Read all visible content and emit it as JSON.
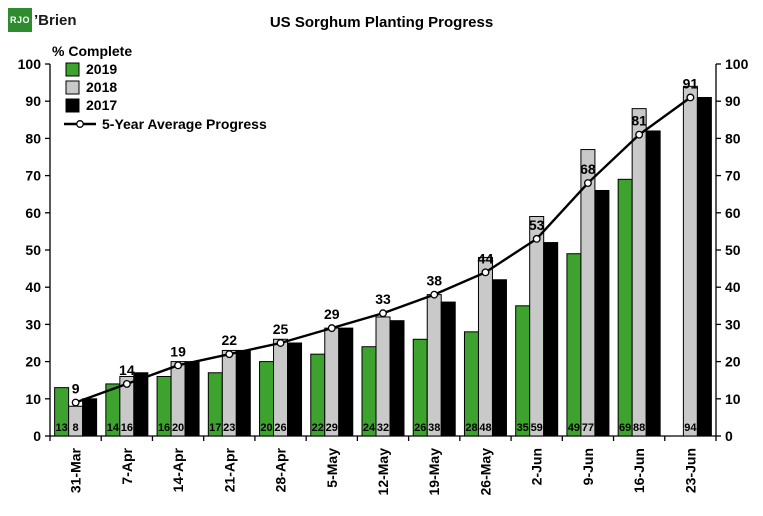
{
  "logo": {
    "mark": "RJO",
    "name": "’Brien"
  },
  "chart_data": {
    "type": "bar",
    "title": "US Sorghum Planting Progress",
    "ylabel": "% Complete",
    "xlabel": "",
    "ylim": [
      0,
      100
    ],
    "yticks": [
      0,
      10,
      20,
      30,
      40,
      50,
      60,
      70,
      80,
      90,
      100
    ],
    "grid": false,
    "legend_position": "top-left",
    "categories": [
      "31-Mar",
      "7-Apr",
      "14-Apr",
      "21-Apr",
      "28-Apr",
      "5-May",
      "12-May",
      "19-May",
      "26-May",
      "2-Jun",
      "9-Jun",
      "16-Jun",
      "23-Jun"
    ],
    "series": [
      {
        "name": "2019",
        "type": "bar",
        "color": "#3da32e",
        "values": [
          13,
          14,
          16,
          17,
          20,
          22,
          24,
          26,
          28,
          35,
          49,
          69,
          null
        ],
        "show_labels": true
      },
      {
        "name": "2018",
        "type": "bar",
        "color": "#c9c9c9",
        "values": [
          8,
          16,
          20,
          23,
          26,
          29,
          32,
          38,
          48,
          59,
          77,
          88,
          94
        ],
        "show_labels": true
      },
      {
        "name": "2017",
        "type": "bar",
        "color": "#000000",
        "values": [
          10,
          17,
          20,
          23,
          25,
          29,
          31,
          36,
          42,
          52,
          66,
          82,
          91
        ],
        "show_labels": false
      },
      {
        "name": "5-Year Average Progress",
        "type": "line",
        "color": "#000000",
        "marker": "circle-open",
        "values": [
          9,
          14,
          19,
          22,
          25,
          29,
          33,
          38,
          44,
          53,
          68,
          81,
          91
        ],
        "show_labels": true
      }
    ]
  }
}
